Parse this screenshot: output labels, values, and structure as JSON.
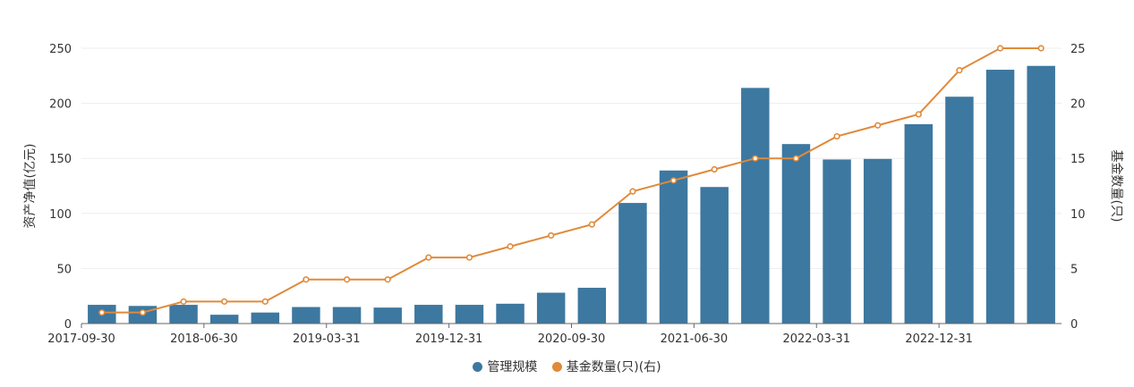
{
  "chart_data": {
    "type": "bar",
    "categories": [
      "2017-09-30",
      "2017-12-31",
      "2018-03-31",
      "2018-06-30",
      "2018-09-30",
      "2018-12-31",
      "2019-03-31",
      "2019-06-30",
      "2019-09-30",
      "2019-12-31",
      "2020-03-31",
      "2020-06-30",
      "2020-09-30",
      "2020-12-31",
      "2021-03-31",
      "2021-06-30",
      "2021-09-30",
      "2021-12-31",
      "2022-03-31",
      "2022-06-30",
      "2022-09-30",
      "2022-12-31",
      "2023-03-31",
      "2023-06-30"
    ],
    "x_tick_labels": [
      "2017-09-30",
      "2018-06-30",
      "2019-03-31",
      "2019-12-31",
      "2020-09-30",
      "2021-06-30",
      "2022-03-31",
      "2022-12-31"
    ],
    "series": [
      {
        "name": "管理规模",
        "type": "bar",
        "axis": "left",
        "color": "#3d78a0",
        "values": [
          17,
          16,
          17,
          8,
          10,
          15,
          15,
          14.5,
          17,
          17,
          18,
          28,
          32.5,
          109.5,
          139,
          124,
          214,
          163,
          149,
          149.5,
          181,
          206,
          230.5,
          234
        ]
      },
      {
        "name": "基金数量(只)(右)",
        "type": "line",
        "axis": "right",
        "color": "#e08a3a",
        "values": [
          1,
          1,
          2,
          2,
          2,
          4,
          4,
          4,
          6,
          6,
          7,
          8,
          9,
          12,
          13,
          14,
          15,
          15,
          17,
          18,
          19,
          23,
          25,
          25
        ]
      }
    ],
    "ylabel": "资产净值(亿元)",
    "y2label": "基金数量(只)",
    "ylim": [
      0,
      250
    ],
    "y2lim": [
      0,
      25
    ],
    "yticks": [
      0,
      50,
      100,
      150,
      200,
      250
    ],
    "y2ticks": [
      0,
      5,
      10,
      15,
      20,
      25
    ],
    "grid": true,
    "legend_position": "bottom-center"
  }
}
